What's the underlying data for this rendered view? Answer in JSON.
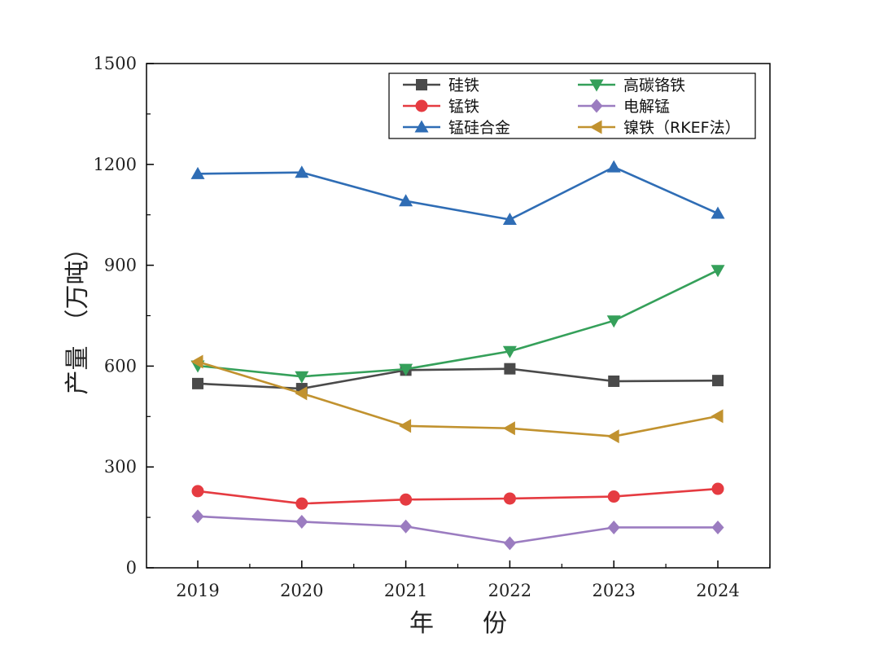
{
  "chart_data": {
    "type": "line",
    "xlabel": "年　　份",
    "ylabel": "产量　（万吨）",
    "ylim": [
      0,
      1500
    ],
    "yticks": [
      "0",
      "300",
      "600",
      "900",
      "1200",
      "1500"
    ],
    "x": [
      "2019",
      "2020",
      "2021",
      "2022",
      "2023",
      "2024"
    ],
    "legend_position": "top-right",
    "series": [
      {
        "name": "硅铁",
        "color": "#4a4a4a",
        "marker": "square",
        "values": [
          548,
          533,
          588,
          592,
          555,
          557
        ]
      },
      {
        "name": "锰铁",
        "color": "#e53b41",
        "marker": "circle",
        "values": [
          228,
          191,
          203,
          206,
          212,
          235
        ]
      },
      {
        "name": "锰硅合金",
        "color": "#2f6db5",
        "marker": "triangle-up",
        "values": [
          1172,
          1176,
          1091,
          1036,
          1192,
          1054
        ]
      },
      {
        "name": "高碳铬铁",
        "color": "#35a05a",
        "marker": "triangle-down",
        "values": [
          601,
          569,
          591,
          644,
          735,
          885
        ]
      },
      {
        "name": "电解锰",
        "color": "#9b7cc0",
        "marker": "diamond",
        "values": [
          153,
          137,
          123,
          73,
          120,
          120
        ]
      },
      {
        "name": "镍铁（RKEF法）",
        "color": "#c1922f",
        "marker": "triangle-left",
        "values": [
          613,
          519,
          422,
          415,
          391,
          451
        ]
      }
    ]
  }
}
